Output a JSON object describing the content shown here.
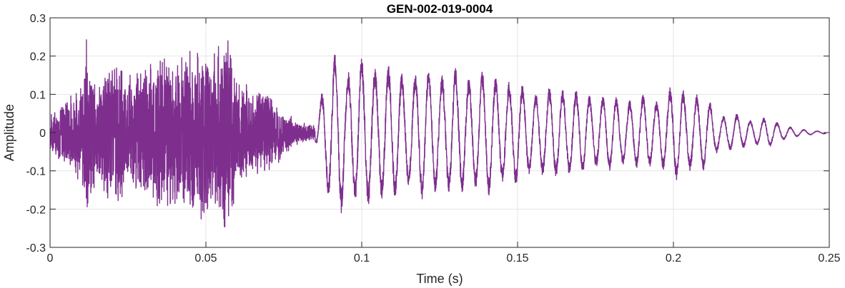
{
  "chart_data": {
    "type": "line",
    "title": "GEN-002-019-0004",
    "xlabel": "Time (s)",
    "ylabel": "Amplitude",
    "xlim": [
      0,
      0.25
    ],
    "ylim": [
      -0.3,
      0.3
    ],
    "grid": true,
    "legend": "none",
    "xticks": [
      0,
      0.05,
      0.1,
      0.15,
      0.2,
      0.25
    ],
    "xtick_labels": [
      "0",
      "0.05",
      "0.1",
      "0.15",
      "0.2",
      "0.25"
    ],
    "yticks": [
      -0.3,
      -0.2,
      -0.1,
      0,
      0.1,
      0.2,
      0.3
    ],
    "ytick_labels": [
      "-0.3",
      "-0.2",
      "-0.1",
      "0",
      "0.1",
      "0.2",
      "0.3"
    ],
    "colors": {
      "line": "#7E2F8E",
      "grid": "#e5e5e5",
      "axis": "#262626"
    },
    "series": [
      {
        "x": [
          0,
          0.005,
          0.01,
          0.012,
          0.015,
          0.02,
          0.022,
          0.025,
          0.03,
          0.035,
          0.04,
          0.045,
          0.048,
          0.05,
          0.052,
          0.055,
          0.057,
          0.06,
          0.065,
          0.07,
          0.075,
          0.08,
          0.085,
          0.087,
          0.09,
          0.093,
          0.095,
          0.1,
          0.105,
          0.11,
          0.115,
          0.12,
          0.125,
          0.13,
          0.135,
          0.14,
          0.145,
          0.15,
          0.155,
          0.16,
          0.165,
          0.17,
          0.175,
          0.18,
          0.185,
          0.19,
          0.195,
          0.2,
          0.205,
          0.21,
          0.215,
          0.22,
          0.225,
          0.23,
          0.235,
          0.24,
          0.245,
          0.249
        ],
        "y": [
          0.05,
          -0.1,
          0.13,
          -0.28,
          0.12,
          0.22,
          -0.2,
          0.15,
          0.2,
          -0.22,
          0.2,
          0.25,
          -0.23,
          0.29,
          -0.2,
          0.27,
          -0.28,
          0.15,
          0.12,
          -0.12,
          0.06,
          -0.03,
          0.02,
          0.1,
          -0.19,
          0.23,
          -0.15,
          0.21,
          -0.17,
          0.18,
          -0.14,
          0.18,
          -0.15,
          0.17,
          -0.14,
          0.17,
          -0.13,
          0.14,
          -0.1,
          0.12,
          -0.11,
          0.11,
          -0.09,
          0.1,
          -0.08,
          0.1,
          -0.08,
          0.13,
          -0.1,
          0.1,
          -0.04,
          0.05,
          -0.03,
          0.04,
          -0.02,
          0.01,
          -0.005,
          0.003
        ]
      }
    ]
  }
}
